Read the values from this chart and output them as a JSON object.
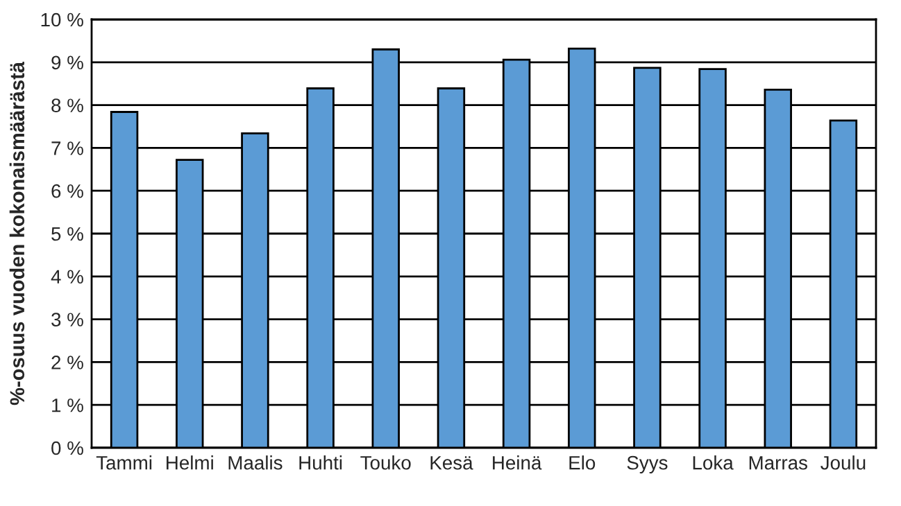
{
  "chart_data": {
    "type": "bar",
    "ylabel": "%-osuus vuoden kokonaismäärästä",
    "categories": [
      "Tammi",
      "Helmi",
      "Maalis",
      "Huhti",
      "Touko",
      "Kesä",
      "Heinä",
      "Elo",
      "Syys",
      "Loka",
      "Marras",
      "Joulu"
    ],
    "values": [
      7.84,
      6.72,
      7.34,
      8.39,
      9.3,
      8.39,
      9.06,
      9.32,
      8.87,
      8.84,
      8.36,
      7.64
    ],
    "color": "#5b9bd5",
    "ylim": [
      0,
      10
    ],
    "yticks": [
      {
        "value": 0,
        "label": "0 %"
      },
      {
        "value": 1,
        "label": "1 %"
      },
      {
        "value": 2,
        "label": "2 %"
      },
      {
        "value": 3,
        "label": "3 %"
      },
      {
        "value": 4,
        "label": "4 %"
      },
      {
        "value": 5,
        "label": "5 %"
      },
      {
        "value": 6,
        "label": "6 %"
      },
      {
        "value": 7,
        "label": "7 %"
      },
      {
        "value": 8,
        "label": "8 %"
      },
      {
        "value": 9,
        "label": "9 %"
      },
      {
        "value": 10,
        "label": "10 %"
      }
    ],
    "grid": "y"
  }
}
